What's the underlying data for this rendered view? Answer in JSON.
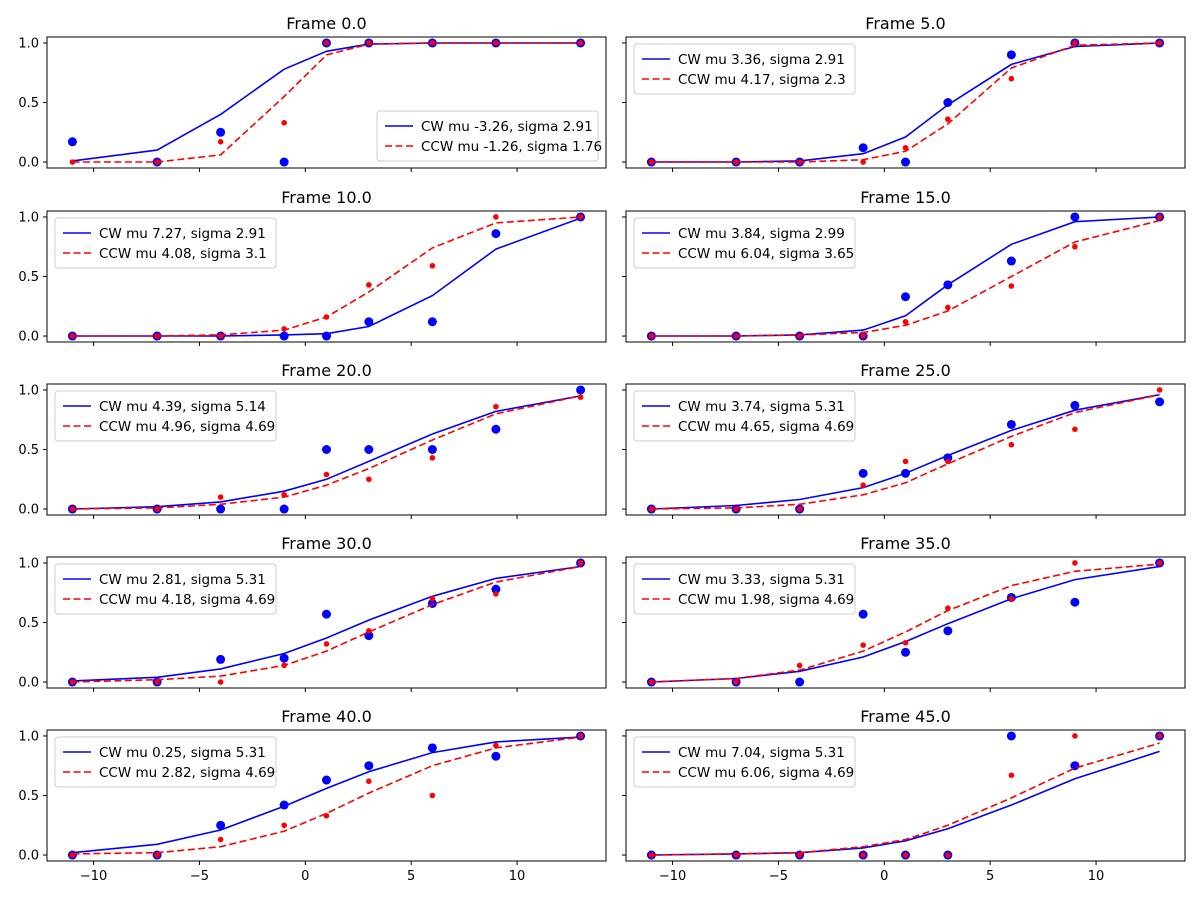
{
  "figure": {
    "xticks": [
      -10,
      -5,
      0,
      5,
      10
    ],
    "xtick_labels": [
      "−10",
      "−5",
      "0",
      "5",
      "10"
    ],
    "yticks": [
      0,
      0.5,
      1
    ],
    "ytick_labels": [
      "0.0",
      "0.5",
      "1.0"
    ],
    "colors": {
      "cw": "#0000ff",
      "ccw": "#ff0000"
    }
  },
  "chart_data": [
    {
      "type": "line",
      "title": "Frame 0.0",
      "xlim": [
        -12.2,
        14.2
      ],
      "ylim": [
        -0.05,
        1.05
      ],
      "x": [
        -11,
        -7,
        -4,
        -1,
        1,
        3,
        6,
        9,
        13
      ],
      "legend_position": "lower-right",
      "series": [
        {
          "name": "CW mu -3.26, sigma 2.91",
          "line": [
            0.01,
            0.1,
            0.4,
            0.78,
            0.93,
            0.99,
            1.0,
            1.0,
            1.0
          ],
          "points": [
            0.17,
            0.0,
            0.25,
            0.0,
            1.0,
            1.0,
            1.0,
            1.0,
            1.0
          ]
        },
        {
          "name": "CCW mu -1.26, sigma 1.76",
          "line": [
            0.0,
            0.0,
            0.06,
            0.55,
            0.9,
            0.99,
            1.0,
            1.0,
            1.0
          ],
          "points": [
            0.0,
            0.0,
            0.17,
            0.33,
            1.0,
            1.0,
            1.0,
            1.0,
            1.0
          ]
        }
      ]
    },
    {
      "type": "line",
      "title": "Frame 5.0",
      "xlim": [
        -12.2,
        14.2
      ],
      "ylim": [
        -0.05,
        1.05
      ],
      "x": [
        -11,
        -7,
        -4,
        -1,
        1,
        3,
        6,
        9,
        13
      ],
      "legend_position": "upper-left",
      "series": [
        {
          "name": "CW mu 3.36, sigma 2.91",
          "line": [
            0.0,
            0.0,
            0.01,
            0.07,
            0.21,
            0.48,
            0.82,
            0.97,
            1.0
          ],
          "points": [
            0.0,
            0.0,
            0.0,
            0.12,
            0.0,
            0.5,
            0.9,
            1.0,
            1.0
          ]
        },
        {
          "name": "CCW mu 4.17, sigma 2.3",
          "line": [
            0.0,
            0.0,
            0.0,
            0.02,
            0.09,
            0.32,
            0.79,
            0.98,
            1.0
          ],
          "points": [
            0.0,
            0.0,
            0.0,
            0.0,
            0.12,
            0.36,
            0.7,
            1.0,
            1.0
          ]
        }
      ]
    },
    {
      "type": "line",
      "title": "Frame 10.0",
      "xlim": [
        -12.2,
        14.2
      ],
      "ylim": [
        -0.05,
        1.05
      ],
      "x": [
        -11,
        -7,
        -4,
        -1,
        1,
        3,
        6,
        9,
        13
      ],
      "legend_position": "upper-left",
      "series": [
        {
          "name": "CW mu 7.27, sigma 2.91",
          "line": [
            0.0,
            0.0,
            0.0,
            0.01,
            0.02,
            0.08,
            0.34,
            0.73,
            0.99
          ],
          "points": [
            0.0,
            0.0,
            0.0,
            0.0,
            0.0,
            0.12,
            0.12,
            0.86,
            1.0
          ]
        },
        {
          "name": "CCW mu 4.08, sigma 3.1",
          "line": [
            0.0,
            0.0,
            0.01,
            0.05,
            0.16,
            0.37,
            0.74,
            0.95,
            1.0
          ],
          "points": [
            0.0,
            0.0,
            0.0,
            0.06,
            0.16,
            0.43,
            0.59,
            1.0,
            1.0
          ]
        }
      ]
    },
    {
      "type": "line",
      "title": "Frame 15.0",
      "xlim": [
        -12.2,
        14.2
      ],
      "ylim": [
        -0.05,
        1.05
      ],
      "x": [
        -11,
        -7,
        -4,
        -1,
        1,
        3,
        6,
        9,
        13
      ],
      "legend_position": "upper-left",
      "series": [
        {
          "name": "CW mu 3.84, sigma 2.99",
          "line": [
            0.0,
            0.0,
            0.01,
            0.05,
            0.17,
            0.43,
            0.77,
            0.96,
            1.0
          ],
          "points": [
            0.0,
            0.0,
            0.0,
            0.0,
            0.33,
            0.43,
            0.63,
            1.0,
            1.0
          ]
        },
        {
          "name": "CCW mu 6.04, sigma 3.65",
          "line": [
            0.0,
            0.0,
            0.01,
            0.03,
            0.09,
            0.21,
            0.5,
            0.79,
            0.97
          ],
          "points": [
            0.0,
            0.0,
            0.0,
            0.0,
            0.12,
            0.24,
            0.42,
            0.75,
            1.0
          ]
        }
      ]
    },
    {
      "type": "line",
      "title": "Frame 20.0",
      "xlim": [
        -12.2,
        14.2
      ],
      "ylim": [
        -0.05,
        1.05
      ],
      "x": [
        -11,
        -7,
        -4,
        -1,
        1,
        3,
        6,
        9,
        13
      ],
      "legend_position": "upper-left",
      "series": [
        {
          "name": "CW mu 4.39, sigma 5.14",
          "line": [
            0.0,
            0.02,
            0.06,
            0.15,
            0.25,
            0.4,
            0.63,
            0.82,
            0.95
          ],
          "points": [
            0.0,
            0.0,
            0.0,
            0.0,
            0.5,
            0.5,
            0.5,
            0.67,
            1.0
          ]
        },
        {
          "name": "CCW mu 4.96, sigma 4.69",
          "line": [
            0.0,
            0.01,
            0.04,
            0.1,
            0.2,
            0.34,
            0.58,
            0.8,
            0.95
          ],
          "points": [
            0.0,
            0.0,
            0.1,
            0.12,
            0.29,
            0.25,
            0.43,
            0.86,
            0.94
          ]
        }
      ]
    },
    {
      "type": "line",
      "title": "Frame 25.0",
      "xlim": [
        -12.2,
        14.2
      ],
      "ylim": [
        -0.05,
        1.05
      ],
      "x": [
        -11,
        -7,
        -4,
        -1,
        1,
        3,
        6,
        9,
        13
      ],
      "legend_position": "upper-left",
      "series": [
        {
          "name": "CW mu 3.74, sigma 5.31",
          "line": [
            0.0,
            0.03,
            0.08,
            0.18,
            0.3,
            0.45,
            0.66,
            0.83,
            0.96
          ],
          "points": [
            0.0,
            0.0,
            0.0,
            0.3,
            0.3,
            0.43,
            0.71,
            0.87,
            0.9
          ]
        },
        {
          "name": "CCW mu 4.65, sigma 4.69",
          "line": [
            0.0,
            0.01,
            0.04,
            0.12,
            0.22,
            0.38,
            0.61,
            0.81,
            0.96
          ],
          "points": [
            0.0,
            0.0,
            0.0,
            0.2,
            0.4,
            0.4,
            0.54,
            0.67,
            1.0
          ]
        }
      ]
    },
    {
      "type": "line",
      "title": "Frame 30.0",
      "xlim": [
        -12.2,
        14.2
      ],
      "ylim": [
        -0.05,
        1.05
      ],
      "x": [
        -11,
        -7,
        -4,
        -1,
        1,
        3,
        6,
        9,
        13
      ],
      "legend_position": "upper-left",
      "series": [
        {
          "name": "CW mu 2.81, sigma 5.31",
          "line": [
            0.01,
            0.04,
            0.11,
            0.24,
            0.37,
            0.52,
            0.72,
            0.87,
            0.97
          ],
          "points": [
            0.0,
            0.0,
            0.19,
            0.2,
            0.57,
            0.39,
            0.66,
            0.78,
            1.0
          ]
        },
        {
          "name": "CCW mu 4.18, sigma 4.69",
          "line": [
            0.0,
            0.02,
            0.05,
            0.14,
            0.26,
            0.42,
            0.65,
            0.84,
            0.97
          ],
          "points": [
            0.0,
            0.0,
            0.0,
            0.14,
            0.32,
            0.43,
            0.7,
            0.74,
            1.0
          ]
        }
      ]
    },
    {
      "type": "line",
      "title": "Frame 35.0",
      "xlim": [
        -12.2,
        14.2
      ],
      "ylim": [
        -0.05,
        1.05
      ],
      "x": [
        -11,
        -7,
        -4,
        -1,
        1,
        3,
        6,
        9,
        13
      ],
      "legend_position": "upper-left",
      "series": [
        {
          "name": "CW mu 3.33, sigma 5.31",
          "line": [
            0.0,
            0.03,
            0.09,
            0.21,
            0.34,
            0.49,
            0.7,
            0.86,
            0.97
          ],
          "points": [
            0.0,
            0.0,
            0.0,
            0.57,
            0.25,
            0.43,
            0.71,
            0.67,
            1.0
          ]
        },
        {
          "name": "CCW mu 1.98, sigma 4.69",
          "line": [
            0.0,
            0.03,
            0.1,
            0.26,
            0.42,
            0.6,
            0.81,
            0.93,
            0.99
          ],
          "points": [
            0.0,
            0.0,
            0.14,
            0.31,
            0.33,
            0.62,
            0.7,
            1.0,
            1.0
          ]
        }
      ]
    },
    {
      "type": "line",
      "title": "Frame 40.0",
      "xlim": [
        -12.2,
        14.2
      ],
      "ylim": [
        -0.05,
        1.05
      ],
      "x": [
        -11,
        -7,
        -4,
        -1,
        1,
        3,
        6,
        9,
        13
      ],
      "legend_position": "upper-left",
      "series": [
        {
          "name": "CW mu 0.25, sigma 5.31",
          "line": [
            0.02,
            0.09,
            0.21,
            0.41,
            0.56,
            0.7,
            0.86,
            0.95,
            0.99
          ],
          "points": [
            0.0,
            0.0,
            0.25,
            0.42,
            0.63,
            0.75,
            0.9,
            0.83,
            1.0
          ]
        },
        {
          "name": "CCW mu 2.82, sigma 4.69",
          "line": [
            0.01,
            0.02,
            0.07,
            0.2,
            0.35,
            0.52,
            0.75,
            0.9,
            0.99
          ],
          "points": [
            0.0,
            0.0,
            0.13,
            0.25,
            0.33,
            0.62,
            0.5,
            0.92,
            1.0
          ]
        }
      ]
    },
    {
      "type": "line",
      "title": "Frame 45.0",
      "xlim": [
        -12.2,
        14.2
      ],
      "ylim": [
        -0.05,
        1.05
      ],
      "x": [
        -11,
        -7,
        -4,
        -1,
        1,
        3,
        6,
        9,
        13
      ],
      "legend_position": "upper-left",
      "series": [
        {
          "name": "CW mu 7.04, sigma 5.31",
          "line": [
            0.0,
            0.01,
            0.02,
            0.06,
            0.12,
            0.22,
            0.42,
            0.64,
            0.87
          ],
          "points": [
            0.0,
            0.0,
            0.0,
            0.0,
            0.0,
            0.0,
            1.0,
            0.75,
            1.0
          ]
        },
        {
          "name": "CCW mu 6.06, sigma 4.69",
          "line": [
            0.0,
            0.01,
            0.02,
            0.07,
            0.13,
            0.25,
            0.48,
            0.73,
            0.94
          ],
          "points": [
            0.0,
            0.0,
            0.0,
            0.0,
            0.0,
            0.0,
            0.67,
            1.0,
            1.0
          ]
        }
      ]
    }
  ]
}
